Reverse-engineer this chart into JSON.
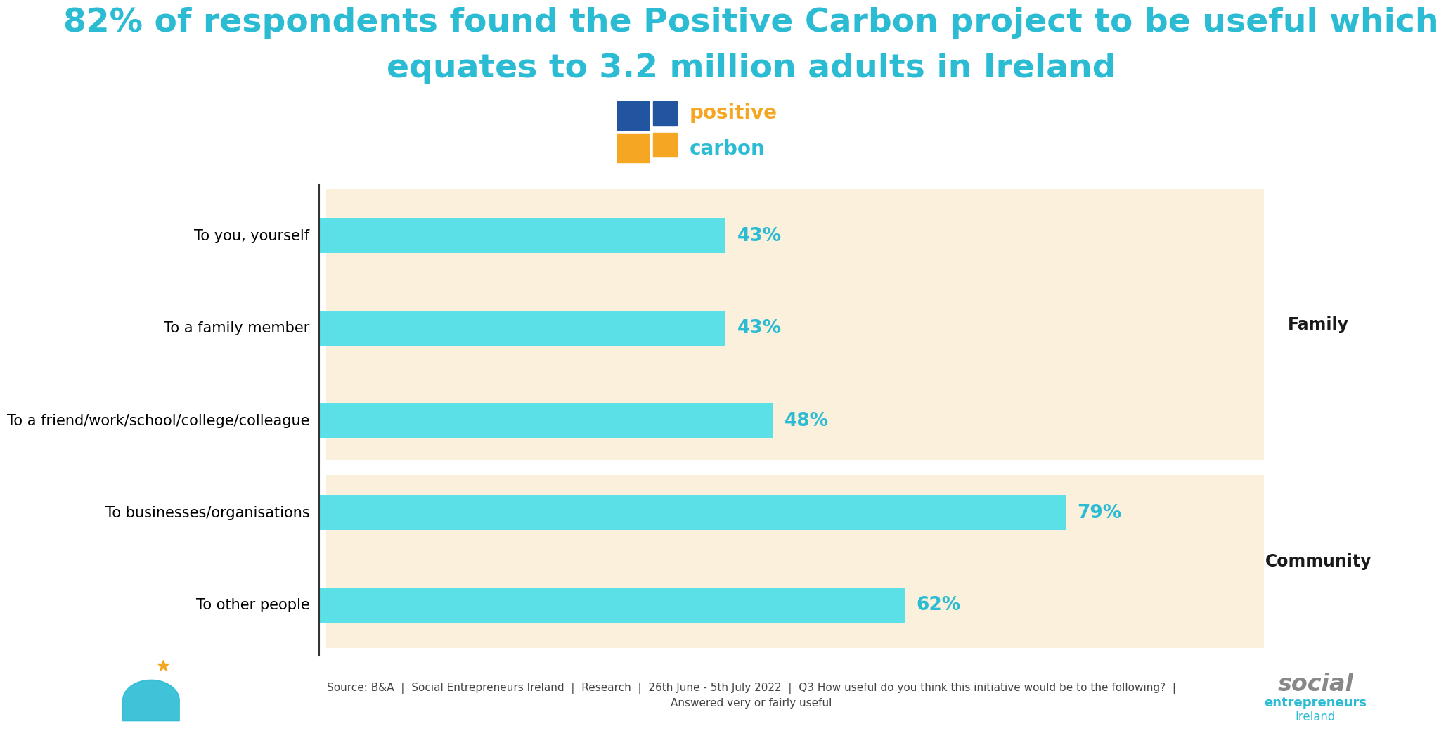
{
  "title_line1": "82% of respondents found the Positive Carbon project to be useful which",
  "title_line2": "equates to 3.2 million adults in Ireland",
  "title_color": "#2BBCD4",
  "title_fontsize": 34,
  "categories": [
    "To you, yourself",
    "To a family member",
    "To a friend/work/school/college/colleague",
    "To businesses/organisations",
    "To other people"
  ],
  "values": [
    43,
    43,
    48,
    79,
    62
  ],
  "bar_color": "#5BE0E8",
  "label_color": "#2BBCD4",
  "label_fontsize": 19,
  "tick_fontsize": 15,
  "group_bg": "#FAF0DC",
  "family_label": "Family",
  "community_label": "Community",
  "group_label_fontsize": 17,
  "source_text": "Source: B&A  |  Social Entrepreneurs Ireland  |  Research  |  26th June - 5th July 2022  |  Q3 How useful do you think this initiative would be to the following?  |",
  "source_text2": "Answered very or fairly useful",
  "source_fontsize": 11,
  "background_color": "#FFFFFF",
  "divider_color": "#333333",
  "xlim": [
    0,
    100
  ],
  "logo_positive_color": "#F5A623",
  "logo_carbon_color": "#2BBCD4",
  "logo_blue": "#2255A0",
  "logo_yellow": "#F5A623"
}
